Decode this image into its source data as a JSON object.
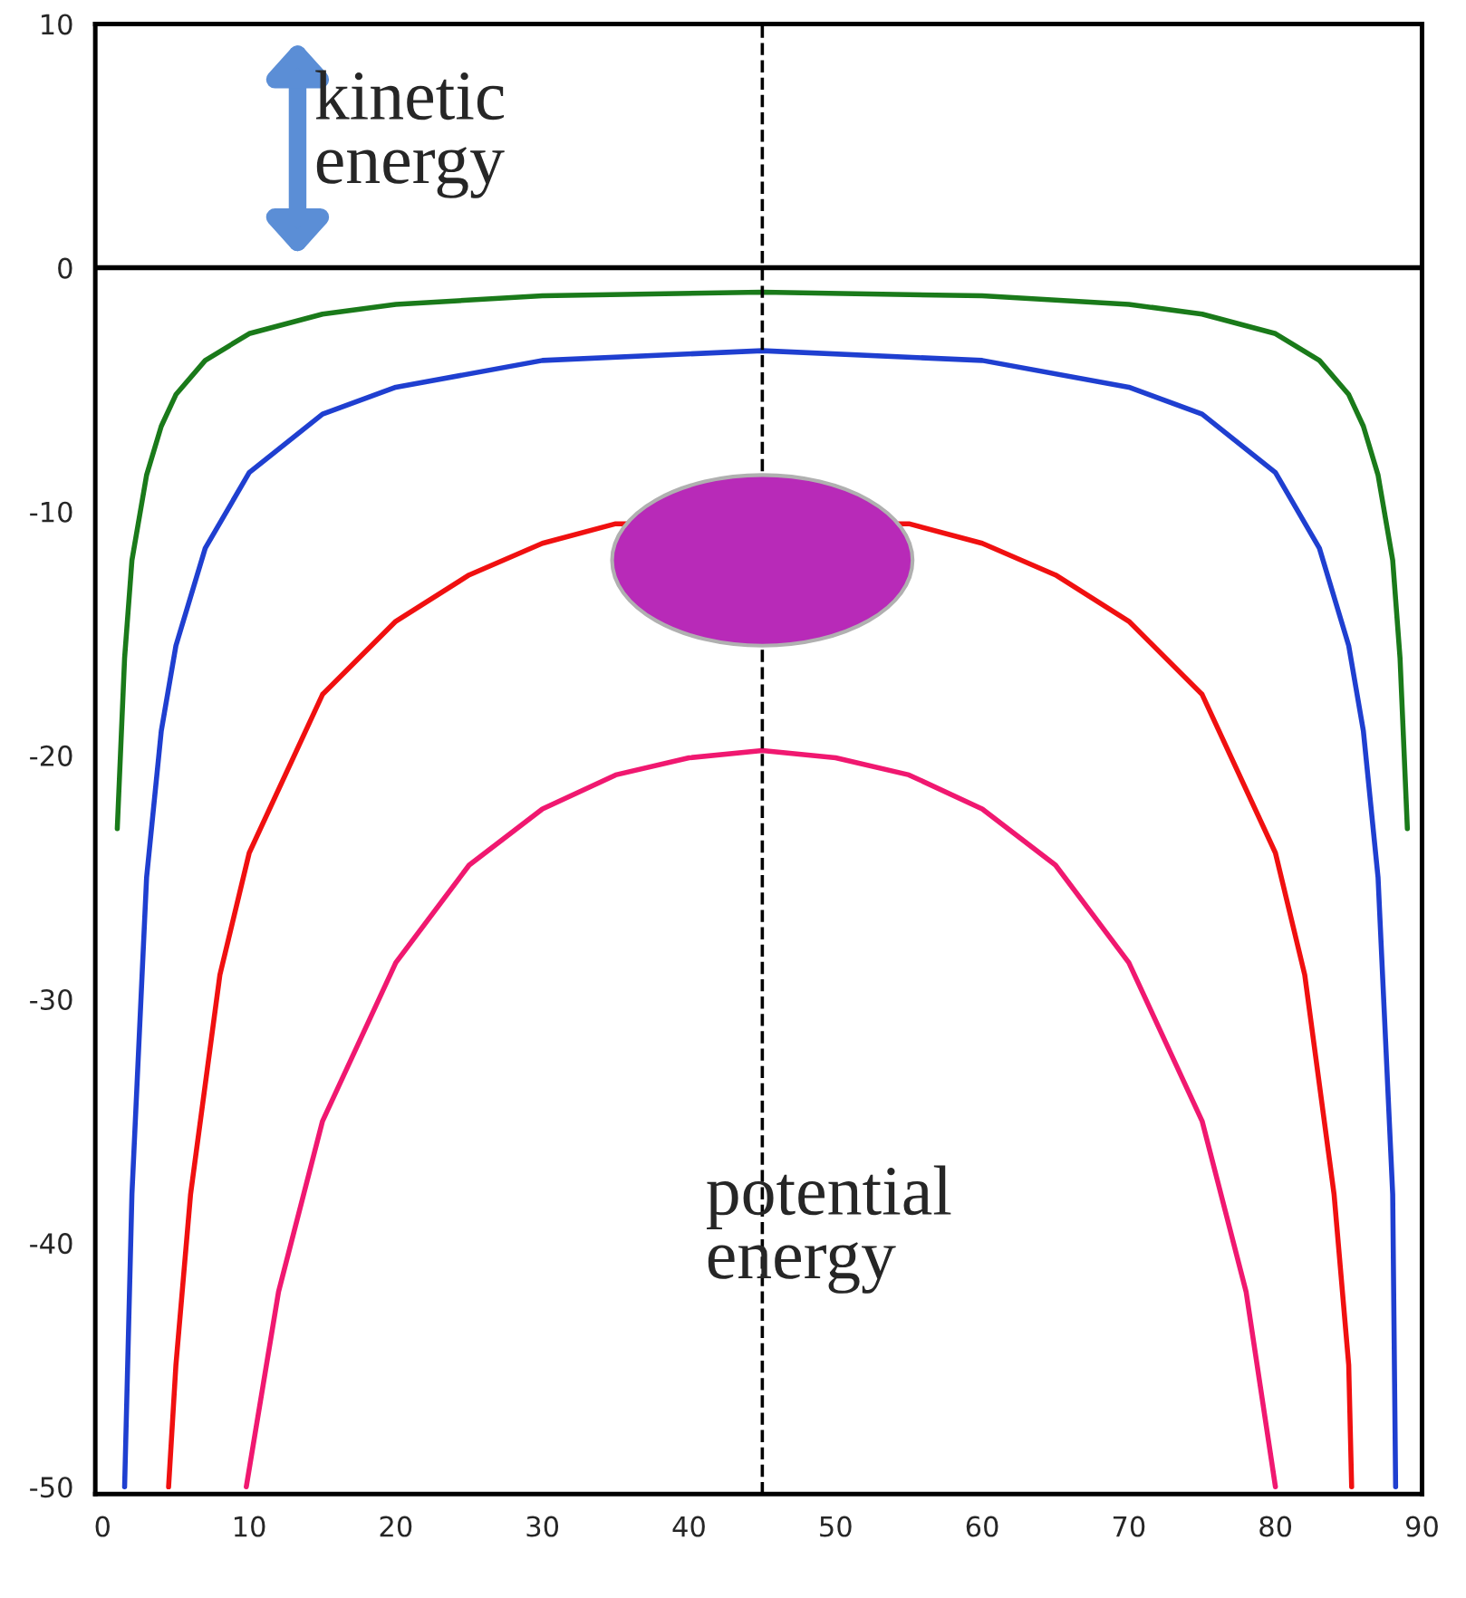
{
  "chart_data": {
    "type": "line",
    "xlim": [
      -0.5,
      90
    ],
    "ylim": [
      -50.3,
      10
    ],
    "xticks": [
      0,
      10,
      20,
      30,
      40,
      50,
      60,
      70,
      80,
      90
    ],
    "yticks": [
      -50,
      -40,
      -30,
      -20,
      -10,
      0,
      10
    ],
    "grid": false,
    "legend": false,
    "marker": "none",
    "line_style": "solid",
    "ref_lines": [
      {
        "axis": "y",
        "value": 0,
        "label": null,
        "color": "#000000",
        "line_style": "solid"
      },
      {
        "axis": "x",
        "value": 45,
        "label": null,
        "color": "#000000",
        "line_style": "dashed"
      }
    ],
    "annotations": [
      "kinetic\nenergy",
      "potential\nenergy"
    ],
    "series": [
      {
        "color": "#1a7a1a",
        "x": [
          1,
          1.5,
          2,
          3,
          4,
          5,
          7,
          10,
          15,
          20,
          30,
          45,
          60,
          70,
          75,
          80,
          83,
          85,
          86,
          87,
          88,
          88.5,
          89
        ],
        "values": [
          -23,
          -16,
          -12,
          -8.5,
          -6.5,
          -5.2,
          -3.8,
          -2.7,
          -1.9,
          -1.5,
          -1.15,
          -1.0,
          -1.15,
          -1.5,
          -1.9,
          -2.7,
          -3.8,
          -5.2,
          -6.5,
          -8.5,
          -12,
          -16,
          -23
        ]
      },
      {
        "color": "#1f3fd0",
        "x": [
          1.5,
          2,
          3,
          4,
          5,
          7,
          10,
          15,
          20,
          30,
          45,
          60,
          70,
          75,
          80,
          83,
          85,
          86,
          87,
          88,
          88.2
        ],
        "values": [
          -50,
          -38,
          -25,
          -19,
          -15.5,
          -11.5,
          -8.4,
          -6,
          -4.9,
          -3.8,
          -3.4,
          -3.8,
          -4.9,
          -6,
          -8.4,
          -11.5,
          -15.5,
          -19,
          -25,
          -38,
          -50
        ]
      },
      {
        "color": "#f01010",
        "x": [
          4.5,
          5,
          6,
          8,
          10,
          15,
          20,
          25,
          30,
          35,
          45,
          55,
          60,
          65,
          70,
          75,
          80,
          82,
          84,
          85,
          85.2
        ],
        "values": [
          -50,
          -45,
          -38,
          -29,
          -24,
          -17.5,
          -14.5,
          -12.6,
          -11.3,
          -10.5,
          null,
          -10.5,
          -11.3,
          -12.6,
          -14.5,
          -17.5,
          -24,
          -29,
          -38,
          -45,
          -50
        ]
      },
      {
        "color": "#f01870",
        "x": [
          9.8,
          12,
          15,
          20,
          25,
          30,
          35,
          40,
          45,
          50,
          55,
          60,
          65,
          70,
          75,
          78,
          80
        ],
        "values": [
          -50,
          -42,
          -35,
          -28.5,
          -24.5,
          -22.2,
          -20.8,
          -20.1,
          -19.8,
          -20.1,
          -20.8,
          -22.2,
          -24.5,
          -28.5,
          -35,
          -42,
          -50
        ]
      }
    ]
  }
}
